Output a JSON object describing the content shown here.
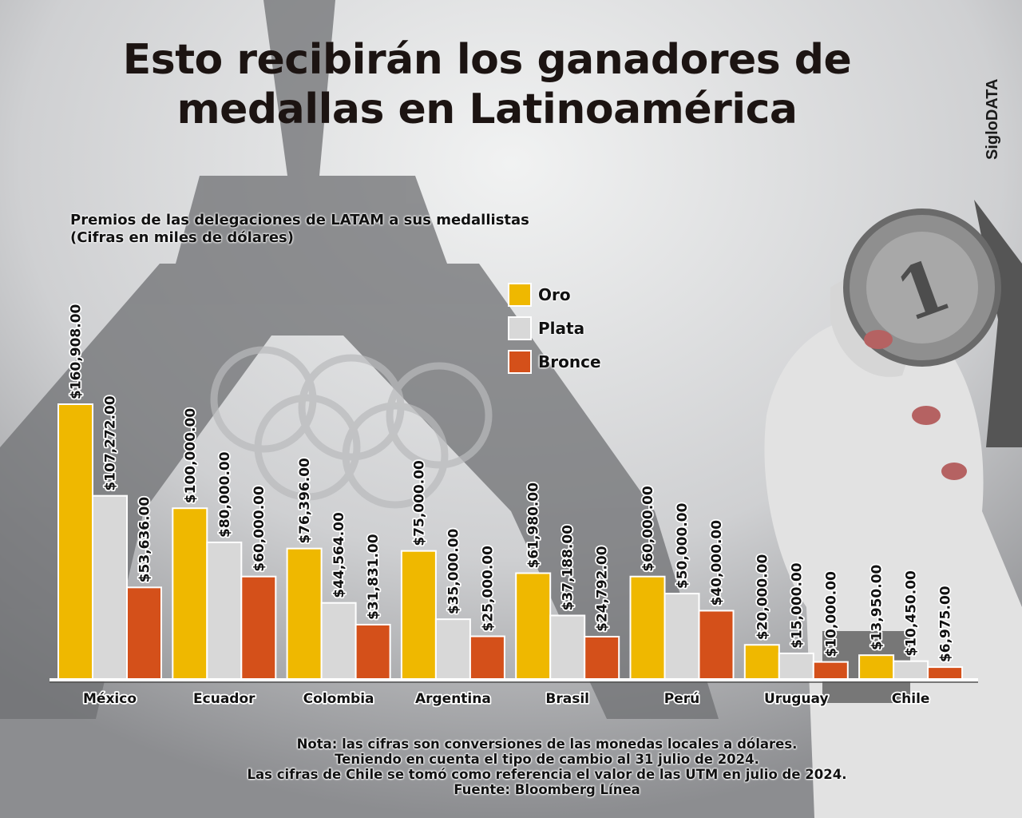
{
  "header": {
    "title_line1": "Esto recibirán los ganadores de",
    "title_line2": "medallas en Latinoamérica",
    "brand": "SigloDATA"
  },
  "colors": {
    "oro": "#efb800",
    "plata": "#d8d8d8",
    "bronce": "#d4501a"
  },
  "chart_data": {
    "type": "bar",
    "title": "Premios de las delegaciones de LATAM a sus medallistas",
    "subtitle": "(Cifras en miles de dólares)",
    "xlabel": "",
    "ylabel": "",
    "ylim": [
      0,
      170000
    ],
    "grid": false,
    "legend_position": "top-center",
    "categories": [
      "México",
      "Ecuador",
      "Colombia",
      "Argentina",
      "Brasil",
      "Perú",
      "Uruguay",
      "Chile"
    ],
    "series": [
      {
        "name": "Oro",
        "color": "#efb800",
        "values": [
          160908,
          100000,
          76396,
          75000,
          61980,
          60000,
          20000,
          13950
        ],
        "labels": [
          "$160,908.00",
          "$100,000.00",
          "$76,396.00",
          "$75,000.00",
          "$61,980.00",
          "$60,000.00",
          "$20,000.00",
          "$13,950.00"
        ]
      },
      {
        "name": "Plata",
        "color": "#d8d8d8",
        "values": [
          107272,
          80000,
          44564,
          35000,
          37188,
          50000,
          15000,
          10450
        ],
        "labels": [
          "$107,272.00",
          "$80,000.00",
          "$44,564.00",
          "$35,000.00",
          "$37,188.00",
          "$50,000.00",
          "$15,000.00",
          "$10,450.00"
        ]
      },
      {
        "name": "Bronce",
        "color": "#d4501a",
        "values": [
          53636,
          60000,
          31831,
          25000,
          24792,
          40000,
          10000,
          6975
        ],
        "labels": [
          "$53,636.00",
          "$60,000.00",
          "$31,831.00",
          "$25,000.00",
          "$24,792.00",
          "$40,000.00",
          "$10,000.00",
          "$6,975.00"
        ]
      }
    ]
  },
  "legend": {
    "items": [
      {
        "label": "Oro",
        "color": "#efb800"
      },
      {
        "label": "Plata",
        "color": "#d8d8d8"
      },
      {
        "label": "Bronce",
        "color": "#d4501a"
      }
    ]
  },
  "footer": {
    "lines": [
      "Nota: las cifras son conversiones de las monedas locales a dólares.",
      "Teniendo en cuenta el tipo de cambio al 31 julio de 2024.",
      "Las cifras de Chile se tomó como referencia el valor de las UTM en julio de 2024.",
      "Fuente: Bloomberg Línea"
    ]
  }
}
